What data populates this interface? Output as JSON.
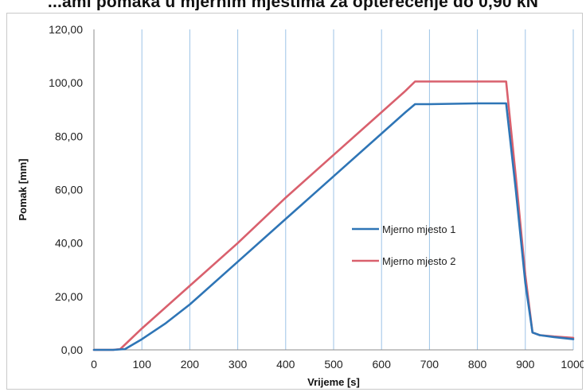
{
  "title": "...ami pomaka u mjernim mjestima za opterećenje do 0,90 kN",
  "chart_data": {
    "type": "line",
    "title": "...ami pomaka u mjernim mjestima za opterećenje do 0,90 kN",
    "xlabel": "Vrijeme [s]",
    "ylabel": "Pomak [mm]",
    "xlim": [
      0,
      1000
    ],
    "ylim": [
      0,
      120
    ],
    "x_ticks": [
      0,
      100,
      200,
      300,
      400,
      500,
      600,
      700,
      800,
      900,
      1000
    ],
    "x_tick_labels": [
      "0",
      "100",
      "200",
      "300",
      "400",
      "500",
      "600",
      "700",
      "800",
      "900",
      "1000"
    ],
    "y_ticks": [
      0,
      20,
      40,
      60,
      80,
      100,
      120
    ],
    "y_tick_labels": [
      "0,00",
      "20,00",
      "40,00",
      "60,00",
      "80,00",
      "100,00",
      "120,00"
    ],
    "grid": "vertical",
    "legend_position": "center-right",
    "series": [
      {
        "name": "Mjerno mjesto 1",
        "color": "#2e75b6",
        "x": [
          0,
          40,
          65,
          100,
          150,
          200,
          300,
          400,
          500,
          600,
          650,
          670,
          700,
          800,
          860,
          880,
          900,
          915,
          930,
          960,
          1000
        ],
        "y": [
          0,
          0,
          0.3,
          4,
          10,
          17,
          33,
          49,
          65,
          81,
          89,
          92,
          92,
          92.3,
          92.3,
          60,
          25,
          6.5,
          5.5,
          4.8,
          4
        ]
      },
      {
        "name": "Mjerno mjesto 2",
        "color": "#d9606d",
        "x": [
          0,
          40,
          55,
          100,
          200,
          300,
          400,
          500,
          600,
          650,
          670,
          700,
          800,
          860,
          880,
          900,
          915,
          930,
          960,
          1000
        ],
        "y": [
          0,
          0,
          0.3,
          8,
          24,
          40,
          57,
          73,
          89,
          97,
          100.5,
          100.5,
          100.5,
          100.5,
          65,
          28,
          6.5,
          5.5,
          5,
          4.5
        ]
      }
    ]
  }
}
